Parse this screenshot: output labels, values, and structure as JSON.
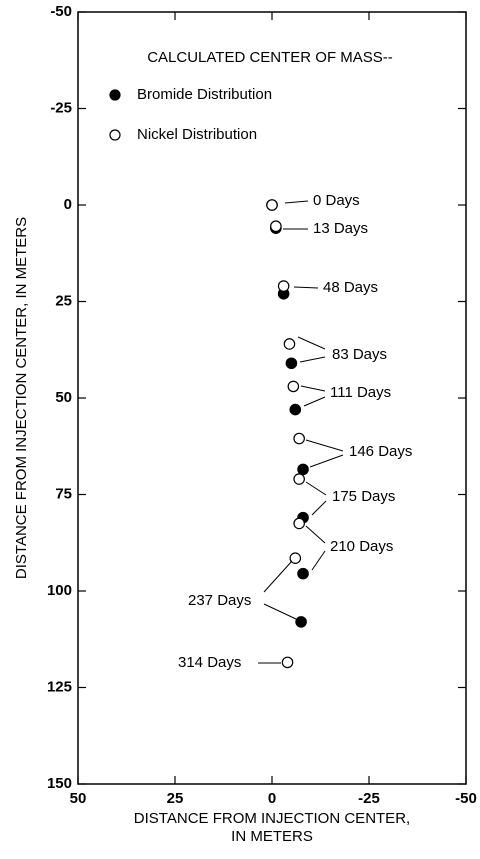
{
  "chart_data": {
    "type": "scatter",
    "legend_title": "CALCULATED CENTER OF MASS--",
    "xlabel": [
      "DISTANCE FROM INJECTION CENTER,",
      "IN METERS"
    ],
    "ylabel": "DISTANCE FROM INJECTION CENTER, IN METERS",
    "xlim": [
      50,
      -50
    ],
    "xticks": [
      50,
      25,
      0,
      -25,
      -50
    ],
    "ylim": [
      -50,
      150
    ],
    "yticks": [
      -50,
      -25,
      0,
      25,
      50,
      75,
      100,
      125,
      150
    ],
    "series": [
      {
        "name": "Bromide Distribution",
        "color": "#000000",
        "filled": true,
        "x": [
          0,
          -1,
          -3,
          -5,
          -6,
          -8,
          -8,
          -8,
          -7.5
        ],
        "values": [
          0,
          6,
          23,
          41,
          53,
          68.5,
          81,
          95.5,
          108
        ]
      },
      {
        "name": "Nickel Distribution",
        "color": "#000000",
        "filled": false,
        "x": [
          0,
          -1,
          -3,
          -4.5,
          -5.5,
          -7,
          -7,
          -7,
          -6,
          -4
        ],
        "values": [
          0,
          5.5,
          21,
          36,
          47,
          60.5,
          71,
          82.5,
          91.5,
          118.5
        ]
      }
    ],
    "annotations": [
      "0 Days",
      "13 Days",
      "48 Days",
      "83 Days",
      "111 Days",
      "146 Days",
      "175 Days",
      "210 Days",
      "237 Days",
      "314 Days"
    ]
  }
}
